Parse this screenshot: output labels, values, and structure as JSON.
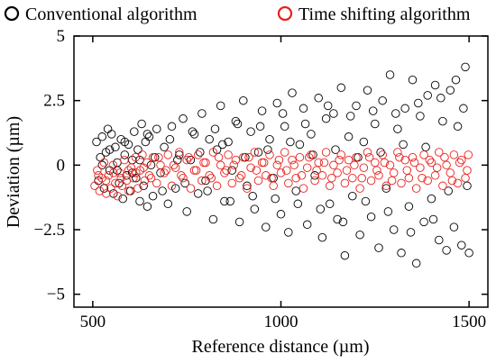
{
  "chart_data": {
    "type": "scatter",
    "xlabel": "Reference distance (µm)",
    "ylabel": "Deviation (µm)",
    "xlim": [
      450,
      1550
    ],
    "ylim": [
      -5.5,
      5
    ],
    "xticks": [
      500,
      1000,
      1500
    ],
    "yticks": [
      5,
      2.5,
      0,
      -2.5,
      -5
    ],
    "ytick_labels": [
      "5",
      "2.5",
      "0",
      "−2.5",
      "−5"
    ],
    "grid": false,
    "legend_position": "top",
    "series": [
      {
        "name": "Conventional algorithm",
        "color": "#000000",
        "marker": "open-circle",
        "points": [
          [
            510,
            0.9
          ],
          [
            515,
            -0.6
          ],
          [
            520,
            0.3
          ],
          [
            525,
            1.1
          ],
          [
            530,
            -0.9
          ],
          [
            535,
            0.5
          ],
          [
            540,
            1.4
          ],
          [
            545,
            -0.2
          ],
          [
            550,
            1.2
          ],
          [
            555,
            -1.1
          ],
          [
            560,
            0.7
          ],
          [
            565,
            0.1
          ],
          [
            570,
            -0.7
          ],
          [
            575,
            1.0
          ],
          [
            580,
            -1.3
          ],
          [
            585,
            0.4
          ],
          [
            590,
            -0.4
          ],
          [
            595,
            0.8
          ],
          [
            600,
            -1.0
          ],
          [
            605,
            0.2
          ],
          [
            610,
            1.3
          ],
          [
            615,
            -0.5
          ],
          [
            620,
            0.6
          ],
          [
            625,
            -1.4
          ],
          [
            630,
            1.6
          ],
          [
            635,
            -0.8
          ],
          [
            640,
            0.9
          ],
          [
            645,
            -1.6
          ],
          [
            650,
            1.1
          ],
          [
            655,
            0.0
          ],
          [
            660,
            -1.2
          ],
          [
            670,
            1.4
          ],
          [
            680,
            -0.3
          ],
          [
            690,
            0.7
          ],
          [
            700,
            -1.5
          ],
          [
            710,
            1.5
          ],
          [
            720,
            -0.9
          ],
          [
            730,
            0.4
          ],
          [
            740,
            1.8
          ],
          [
            750,
            -1.8
          ],
          [
            760,
            0.2
          ],
          [
            770,
            1.2
          ],
          [
            780,
            -1.1
          ],
          [
            790,
            2.0
          ],
          [
            800,
            -0.6
          ],
          [
            810,
            1.0
          ],
          [
            820,
            -2.1
          ],
          [
            830,
            0.6
          ],
          [
            840,
            2.3
          ],
          [
            850,
            -1.4
          ],
          [
            860,
            0.9
          ],
          [
            870,
            -0.2
          ],
          [
            880,
            1.7
          ],
          [
            890,
            -2.2
          ],
          [
            900,
            2.5
          ],
          [
            910,
            -0.8
          ],
          [
            920,
            1.3
          ],
          [
            930,
            -1.7
          ],
          [
            940,
            0.5
          ],
          [
            950,
            2.1
          ],
          [
            960,
            -2.4
          ],
          [
            970,
            1.0
          ],
          [
            980,
            -0.5
          ],
          [
            990,
            2.4
          ],
          [
            1000,
            -1.9
          ],
          [
            1010,
            1.5
          ],
          [
            1020,
            -2.6
          ],
          [
            1030,
            2.8
          ],
          [
            1040,
            -1.0
          ],
          [
            1050,
            0.8
          ],
          [
            1060,
            2.2
          ],
          [
            1070,
            -2.3
          ],
          [
            1080,
            1.2
          ],
          [
            1090,
            -0.4
          ],
          [
            1100,
            2.6
          ],
          [
            1110,
            -2.8
          ],
          [
            1120,
            1.8
          ],
          [
            1130,
            -1.5
          ],
          [
            1140,
            2.0
          ],
          [
            1150,
            -2.1
          ],
          [
            1160,
            3.0
          ],
          [
            1170,
            -3.5
          ],
          [
            1180,
            1.1
          ],
          [
            1190,
            -1.2
          ],
          [
            1200,
            2.3
          ],
          [
            1210,
            -2.7
          ],
          [
            1220,
            0.9
          ],
          [
            1230,
            2.9
          ],
          [
            1240,
            -2.0
          ],
          [
            1250,
            1.6
          ],
          [
            1260,
            -3.2
          ],
          [
            1270,
            2.5
          ],
          [
            1280,
            -0.9
          ],
          [
            1290,
            3.5
          ],
          [
            1300,
            -2.5
          ],
          [
            1310,
            1.4
          ],
          [
            1320,
            -3.4
          ],
          [
            1330,
            2.2
          ],
          [
            1340,
            -1.6
          ],
          [
            1350,
            3.3
          ],
          [
            1360,
            -3.8
          ],
          [
            1370,
            1.9
          ],
          [
            1380,
            -2.2
          ],
          [
            1390,
            2.7
          ],
          [
            1400,
            -1.3
          ],
          [
            1410,
            3.1
          ],
          [
            1420,
            -2.9
          ],
          [
            1430,
            1.7
          ],
          [
            1440,
            -3.3
          ],
          [
            1450,
            2.9
          ],
          [
            1460,
            -2.4
          ],
          [
            1470,
            1.5
          ],
          [
            1480,
            -3.1
          ],
          [
            1490,
            3.8
          ],
          [
            1495,
            -0.8
          ],
          [
            1500,
            -3.4
          ],
          [
            1485,
            2.2
          ],
          [
            1465,
            3.3
          ],
          [
            1445,
            -1.0
          ],
          [
            1425,
            2.6
          ],
          [
            1405,
            -2.1
          ],
          [
            1385,
            0.7
          ],
          [
            1365,
            2.4
          ],
          [
            1345,
            -2.6
          ],
          [
            1325,
            0.8
          ],
          [
            1305,
            2.0
          ],
          [
            1285,
            -1.8
          ],
          [
            1265,
            0.5
          ],
          [
            1245,
            2.1
          ],
          [
            1225,
            -1.4
          ],
          [
            1205,
            0.3
          ],
          [
            1185,
            1.9
          ],
          [
            1165,
            -2.2
          ],
          [
            1145,
            0.6
          ],
          [
            1125,
            2.3
          ],
          [
            1105,
            -1.7
          ],
          [
            1085,
            0.4
          ],
          [
            1065,
            1.6
          ],
          [
            1045,
            -1.5
          ],
          [
            1025,
            0.9
          ],
          [
            1005,
            2.0
          ],
          [
            985,
            -1.3
          ],
          [
            965,
            0.6
          ],
          [
            945,
            1.5
          ],
          [
            925,
            -1.2
          ],
          [
            905,
            0.3
          ],
          [
            885,
            1.6
          ],
          [
            865,
            -1.4
          ],
          [
            845,
            0.8
          ],
          [
            825,
            1.4
          ],
          [
            805,
            -1.0
          ],
          [
            785,
            0.5
          ],
          [
            765,
            1.3
          ],
          [
            745,
            -0.7
          ],
          [
            725,
            0.2
          ],
          [
            705,
            1.0
          ],
          [
            685,
            -1.0
          ],
          [
            665,
            0.3
          ],
          [
            645,
            1.2
          ],
          [
            625,
            0.2
          ],
          [
            605,
            -0.3
          ],
          [
            585,
            0.9
          ],
          [
            565,
            -0.2
          ],
          [
            545,
            0.6
          ],
          [
            525,
            0.0
          ]
        ]
      },
      {
        "name": "Time shifting algorithm",
        "color": "#e8201c",
        "marker": "open-circle",
        "points": [
          [
            505,
            -0.8
          ],
          [
            512,
            -0.2
          ],
          [
            518,
            -1.0
          ],
          [
            524,
            -0.5
          ],
          [
            530,
            0.1
          ],
          [
            536,
            -1.1
          ],
          [
            542,
            -0.4
          ],
          [
            548,
            -0.9
          ],
          [
            554,
            0.0
          ],
          [
            560,
            -0.7
          ],
          [
            566,
            -1.2
          ],
          [
            572,
            -0.3
          ],
          [
            578,
            -0.8
          ],
          [
            584,
            0.2
          ],
          [
            590,
            -0.6
          ],
          [
            596,
            -1.0
          ],
          [
            602,
            -0.1
          ],
          [
            608,
            -0.5
          ],
          [
            614,
            0.3
          ],
          [
            620,
            -0.9
          ],
          [
            626,
            -0.2
          ],
          [
            632,
            0.4
          ],
          [
            638,
            -0.6
          ],
          [
            644,
            0.1
          ],
          [
            650,
            -0.4
          ],
          [
            660,
            0.3
          ],
          [
            670,
            -0.7
          ],
          [
            680,
            0.0
          ],
          [
            690,
            -0.3
          ],
          [
            700,
            0.4
          ],
          [
            710,
            -0.8
          ],
          [
            720,
            -0.1
          ],
          [
            730,
            0.5
          ],
          [
            740,
            -0.5
          ],
          [
            750,
            0.2
          ],
          [
            760,
            -0.9
          ],
          [
            770,
            -0.2
          ],
          [
            780,
            0.4
          ],
          [
            790,
            -0.6
          ],
          [
            800,
            0.1
          ],
          [
            810,
            -0.4
          ],
          [
            820,
            0.5
          ],
          [
            830,
            -0.8
          ],
          [
            840,
            0.0
          ],
          [
            850,
            -0.3
          ],
          [
            860,
            0.4
          ],
          [
            870,
            -0.7
          ],
          [
            880,
            0.2
          ],
          [
            890,
            -0.5
          ],
          [
            900,
            0.3
          ],
          [
            910,
            -0.9
          ],
          [
            920,
            -0.1
          ],
          [
            930,
            0.5
          ],
          [
            940,
            -0.6
          ],
          [
            950,
            0.1
          ],
          [
            960,
            -0.4
          ],
          [
            970,
            0.4
          ],
          [
            980,
            -0.8
          ],
          [
            990,
            0.0
          ],
          [
            1000,
            -0.3
          ],
          [
            1010,
            0.5
          ],
          [
            1020,
            -0.7
          ],
          [
            1030,
            0.2
          ],
          [
            1040,
            -0.5
          ],
          [
            1050,
            0.3
          ],
          [
            1060,
            -0.9
          ],
          [
            1070,
            -0.1
          ],
          [
            1080,
            0.4
          ],
          [
            1090,
            -0.6
          ],
          [
            1100,
            0.1
          ],
          [
            1110,
            -0.4
          ],
          [
            1120,
            0.5
          ],
          [
            1130,
            -0.8
          ],
          [
            1140,
            0.0
          ],
          [
            1150,
            -0.3
          ],
          [
            1160,
            0.4
          ],
          [
            1170,
            -0.7
          ],
          [
            1180,
            0.2
          ],
          [
            1190,
            -0.5
          ],
          [
            1200,
            0.3
          ],
          [
            1210,
            -0.9
          ],
          [
            1220,
            -0.1
          ],
          [
            1230,
            0.5
          ],
          [
            1240,
            -0.6
          ],
          [
            1250,
            0.1
          ],
          [
            1260,
            -0.4
          ],
          [
            1270,
            0.4
          ],
          [
            1280,
            -0.8
          ],
          [
            1290,
            0.0
          ],
          [
            1300,
            -0.3
          ],
          [
            1310,
            0.5
          ],
          [
            1320,
            -0.7
          ],
          [
            1330,
            0.2
          ],
          [
            1340,
            -0.5
          ],
          [
            1350,
            0.3
          ],
          [
            1360,
            -0.9
          ],
          [
            1370,
            -0.1
          ],
          [
            1380,
            0.4
          ],
          [
            1390,
            -0.6
          ],
          [
            1400,
            0.1
          ],
          [
            1410,
            -0.4
          ],
          [
            1420,
            0.5
          ],
          [
            1430,
            -0.8
          ],
          [
            1440,
            0.0
          ],
          [
            1450,
            -0.3
          ],
          [
            1460,
            0.4
          ],
          [
            1470,
            -0.7
          ],
          [
            1480,
            0.2
          ],
          [
            1490,
            -0.5
          ],
          [
            1498,
            0.4
          ],
          [
            1495,
            -0.2
          ],
          [
            1475,
            0.1
          ],
          [
            1455,
            -0.6
          ],
          [
            1435,
            0.3
          ],
          [
            1415,
            -0.1
          ],
          [
            1395,
            0.2
          ],
          [
            1375,
            -0.5
          ],
          [
            1355,
            0.1
          ],
          [
            1335,
            -0.2
          ],
          [
            1315,
            0.3
          ],
          [
            1295,
            -0.6
          ],
          [
            1275,
            0.1
          ],
          [
            1255,
            -0.2
          ],
          [
            1235,
            0.3
          ],
          [
            1215,
            -0.5
          ],
          [
            1195,
            0.0
          ],
          [
            1175,
            -0.2
          ],
          [
            1155,
            0.2
          ],
          [
            1135,
            -0.5
          ],
          [
            1115,
            0.1
          ],
          [
            1095,
            -0.2
          ],
          [
            1075,
            0.3
          ],
          [
            1055,
            -0.4
          ],
          [
            1035,
            0.0
          ],
          [
            1015,
            -0.2
          ],
          [
            995,
            0.2
          ],
          [
            975,
            -0.5
          ],
          [
            955,
            0.1
          ],
          [
            935,
            -0.2
          ],
          [
            915,
            0.3
          ],
          [
            895,
            -0.4
          ],
          [
            875,
            0.0
          ],
          [
            855,
            -0.2
          ],
          [
            835,
            0.3
          ],
          [
            815,
            -0.5
          ],
          [
            795,
            0.1
          ],
          [
            775,
            -0.2
          ],
          [
            755,
            0.3
          ],
          [
            735,
            -0.4
          ],
          [
            715,
            0.0
          ],
          [
            695,
            -0.2
          ],
          [
            675,
            0.3
          ],
          [
            655,
            -0.5
          ],
          [
            635,
            -0.1
          ],
          [
            615,
            -0.3
          ],
          [
            595,
            -0.2
          ],
          [
            575,
            -0.5
          ],
          [
            555,
            -0.3
          ],
          [
            535,
            -0.6
          ],
          [
            515,
            -0.4
          ]
        ]
      }
    ]
  }
}
